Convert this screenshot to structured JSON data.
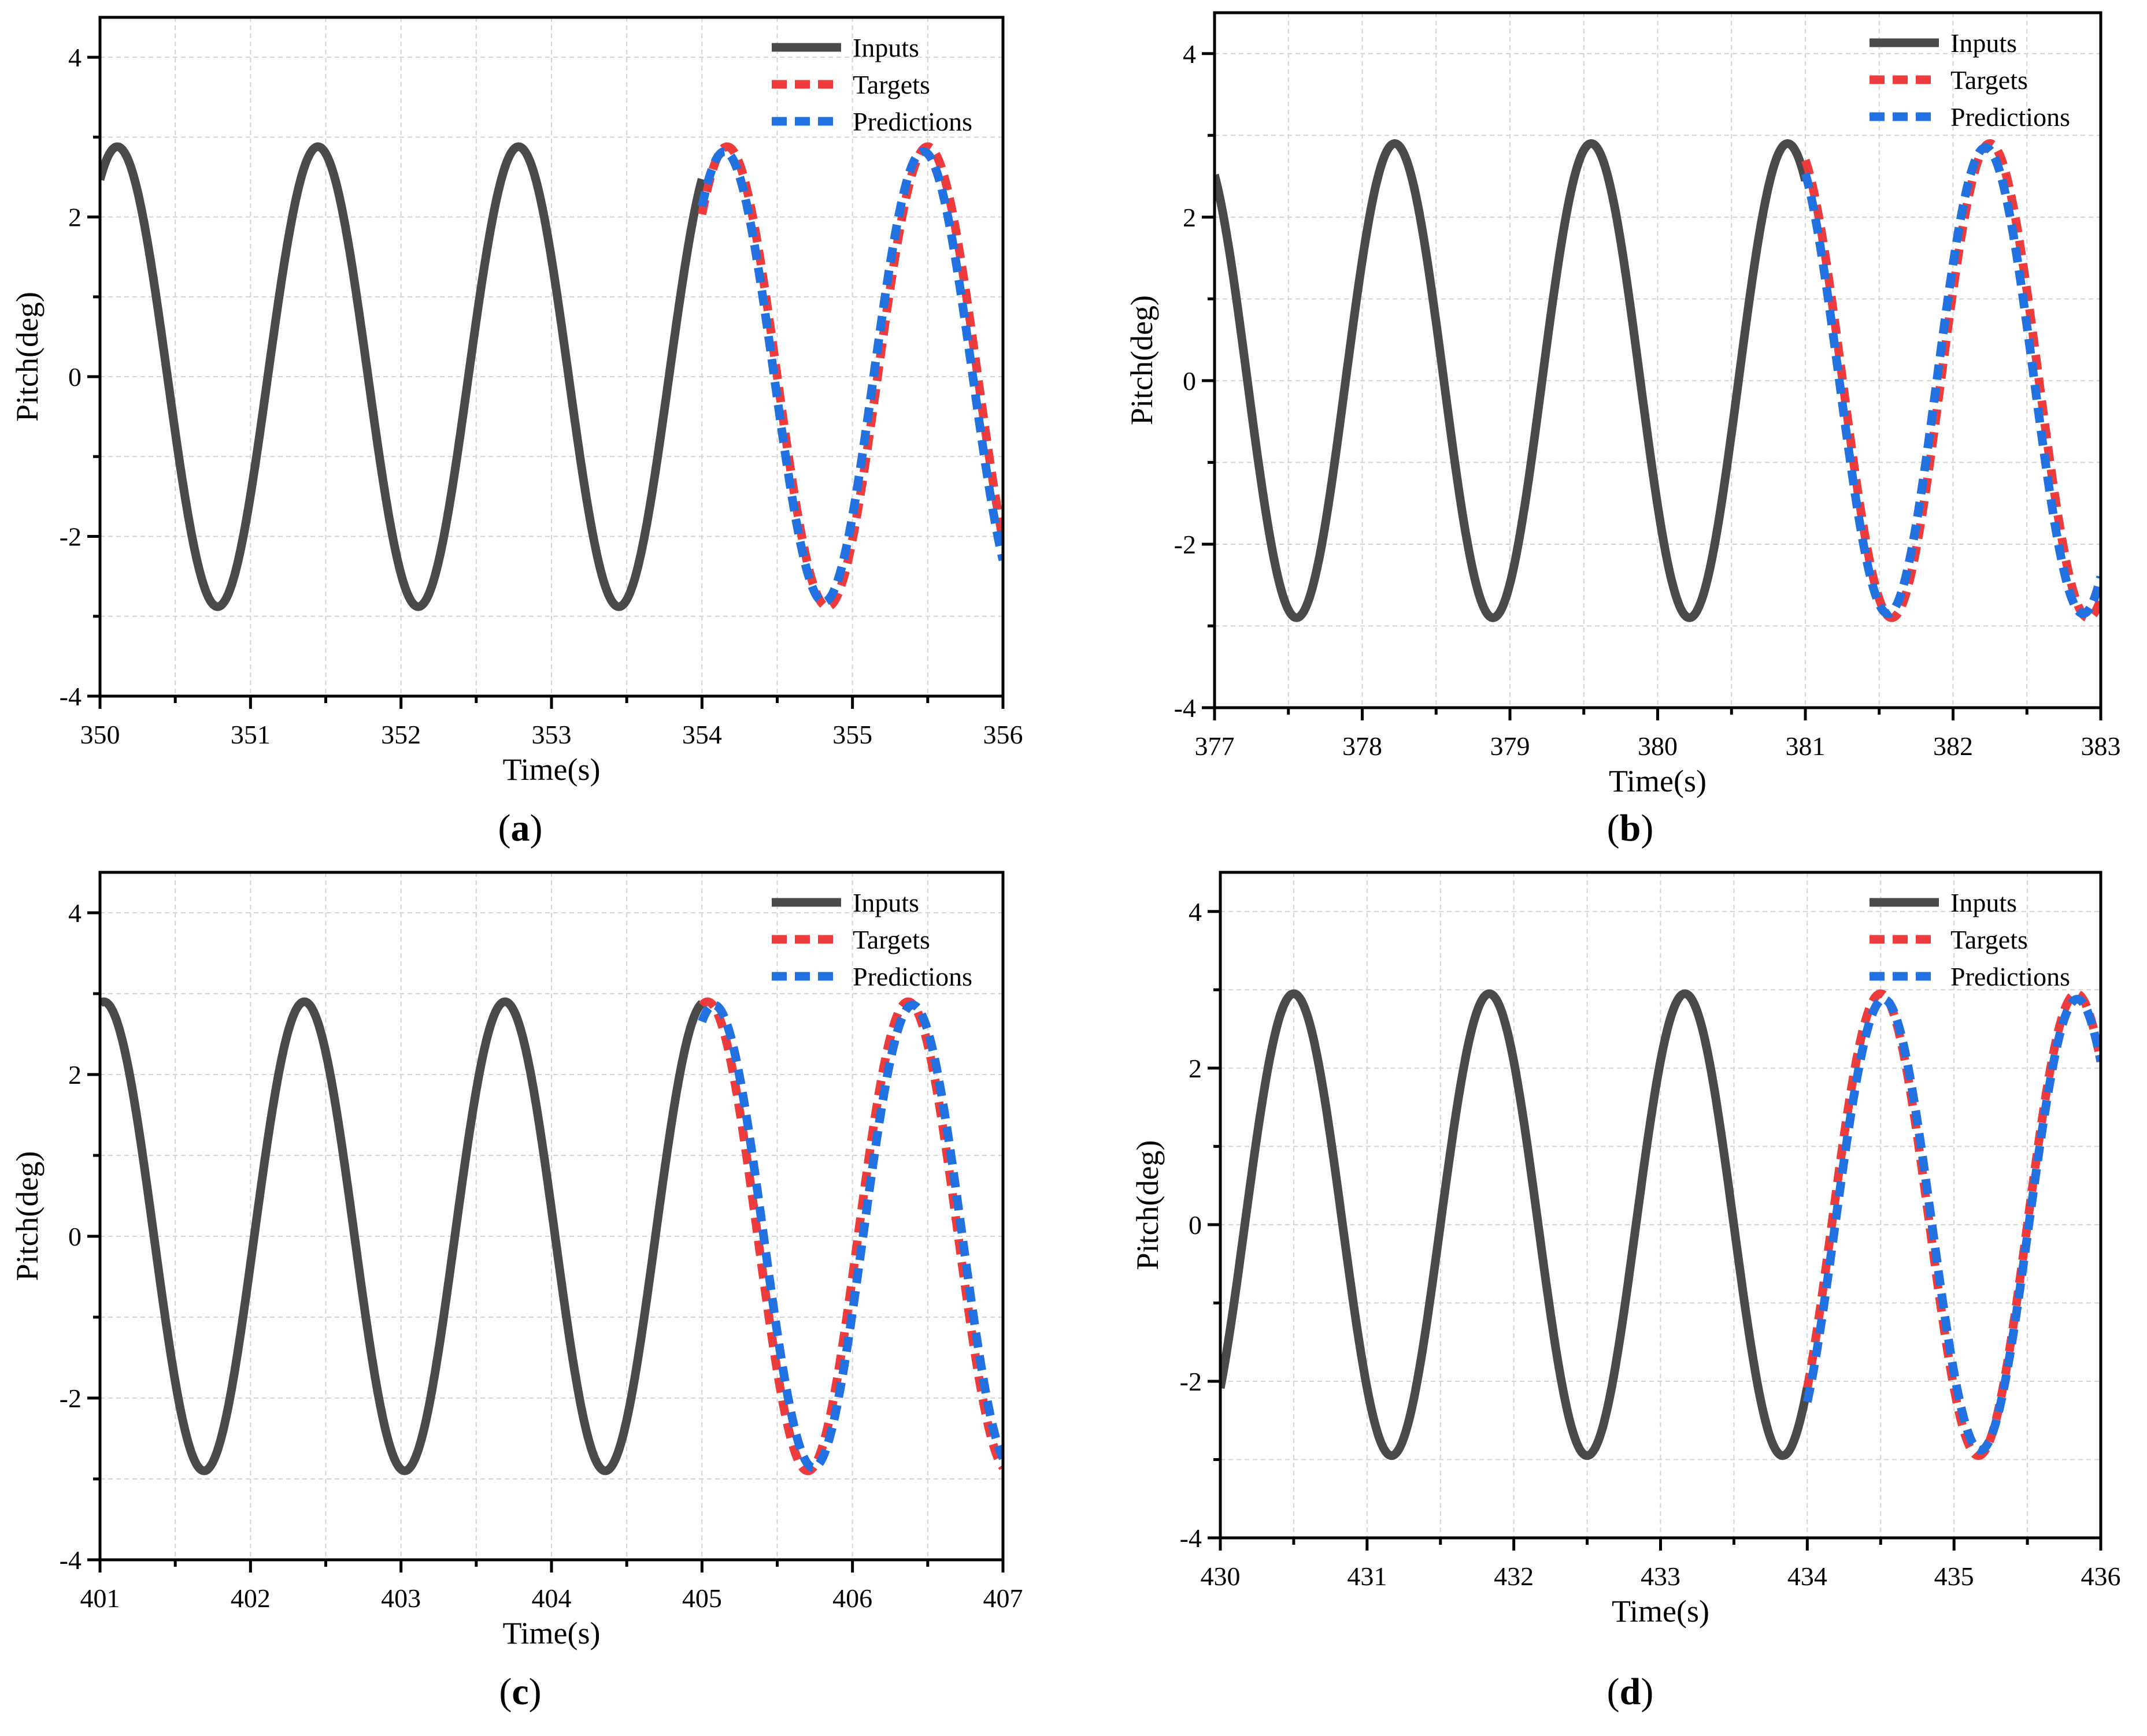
{
  "colors": {
    "inputs": "#4a4a4a",
    "targets": "#ee3b3b",
    "predictions": "#2271e0",
    "grid": "#d4d4d4",
    "axis": "#000000"
  },
  "chart_data": [
    {
      "caption": "a",
      "type": "line",
      "xlabel": "Time(s)",
      "ylabel": "Pitch(deg)",
      "xlim": [
        350,
        356
      ],
      "ylim": [
        -4,
        4.5
      ],
      "xticks": [
        "350",
        "351",
        "352",
        "353",
        "354",
        "355",
        "356"
      ],
      "yticks": [
        "-4",
        "-2",
        "0",
        "2",
        "4"
      ],
      "grid": true,
      "legend_position": "top-right",
      "legend": [
        "Inputs",
        "Targets",
        "Predictions"
      ],
      "series": [
        {
          "name": "Inputs",
          "style": "solid",
          "x_range": [
            350.0,
            354.0
          ],
          "amplitude": 2.88,
          "period": 1.333,
          "peak_time": 350.115
        },
        {
          "name": "Targets",
          "style": "dashed",
          "x_range": [
            354.0,
            356.0
          ],
          "amplitude": 2.88,
          "period": 1.333,
          "peak_time": 355.5
        },
        {
          "name": "Predictions",
          "style": "dashed",
          "x_range": [
            354.0,
            356.0
          ],
          "amplitude": 2.82,
          "period": 1.32,
          "peak_time": 355.47
        }
      ]
    },
    {
      "caption": "b",
      "type": "line",
      "xlabel": "Time(s)",
      "ylabel": "Pitch(deg)",
      "xlim": [
        377,
        383
      ],
      "ylim": [
        -4,
        4.5
      ],
      "xticks": [
        "377",
        "378",
        "379",
        "380",
        "381",
        "382",
        "383"
      ],
      "yticks": [
        "-4",
        "-2",
        "0",
        "2",
        "4"
      ],
      "grid": true,
      "legend_position": "top-right",
      "legend": [
        "Inputs",
        "Targets",
        "Predictions"
      ],
      "series": [
        {
          "name": "Inputs",
          "style": "solid",
          "x_range": [
            377.0,
            381.0
          ],
          "amplitude": 2.9,
          "period": 1.33,
          "peak_time": 378.22
        },
        {
          "name": "Targets",
          "style": "dashed",
          "x_range": [
            381.0,
            383.0
          ],
          "amplitude": 2.9,
          "period": 1.33,
          "peak_time": 382.25
        },
        {
          "name": "Predictions",
          "style": "dashed",
          "x_range": [
            381.0,
            383.0
          ],
          "amplitude": 2.85,
          "period": 1.32,
          "peak_time": 382.22
        }
      ]
    },
    {
      "caption": "c",
      "type": "line",
      "xlabel": "Time(s)",
      "ylabel": "Pitch(deg)",
      "xlim": [
        401,
        407
      ],
      "ylim": [
        -4,
        4.5
      ],
      "xticks": [
        "401",
        "402",
        "403",
        "404",
        "405",
        "406",
        "407"
      ],
      "yticks": [
        "-4",
        "-2",
        "0",
        "2",
        "4"
      ],
      "grid": true,
      "legend_position": "top-right",
      "legend": [
        "Inputs",
        "Targets",
        "Predictions"
      ],
      "series": [
        {
          "name": "Inputs",
          "style": "solid",
          "x_range": [
            401.0,
            405.0
          ],
          "amplitude": 2.9,
          "period": 1.333,
          "peak_time": 401.025
        },
        {
          "name": "Targets",
          "style": "dashed",
          "x_range": [
            405.0,
            407.0
          ],
          "amplitude": 2.9,
          "period": 1.333,
          "peak_time": 406.37
        },
        {
          "name": "Predictions",
          "style": "dashed",
          "x_range": [
            405.0,
            407.0
          ],
          "amplitude": 2.86,
          "period": 1.32,
          "peak_time": 406.4
        }
      ]
    },
    {
      "caption": "d",
      "type": "line",
      "xlabel": "Time(s)",
      "ylabel": "Pitch(deg)",
      "xlim": [
        430,
        436
      ],
      "ylim": [
        -4,
        4.5
      ],
      "xticks": [
        "430",
        "431",
        "432",
        "433",
        "434",
        "435",
        "436"
      ],
      "yticks": [
        "-4",
        "-2",
        "0",
        "2",
        "4"
      ],
      "grid": true,
      "legend_position": "top-right",
      "legend": [
        "Inputs",
        "Targets",
        "Predictions"
      ],
      "series": [
        {
          "name": "Inputs",
          "style": "solid",
          "x_range": [
            430.0,
            434.0
          ],
          "amplitude": 2.95,
          "period": 1.333,
          "peak_time": 430.5
        },
        {
          "name": "Targets",
          "style": "dashed",
          "x_range": [
            434.0,
            436.0
          ],
          "amplitude": 2.95,
          "period": 1.333,
          "peak_time": 434.5
        },
        {
          "name": "Predictions",
          "style": "dashed",
          "x_range": [
            434.0,
            436.0
          ],
          "amplitude": 2.88,
          "period": 1.32,
          "peak_time": 434.52
        }
      ]
    }
  ]
}
